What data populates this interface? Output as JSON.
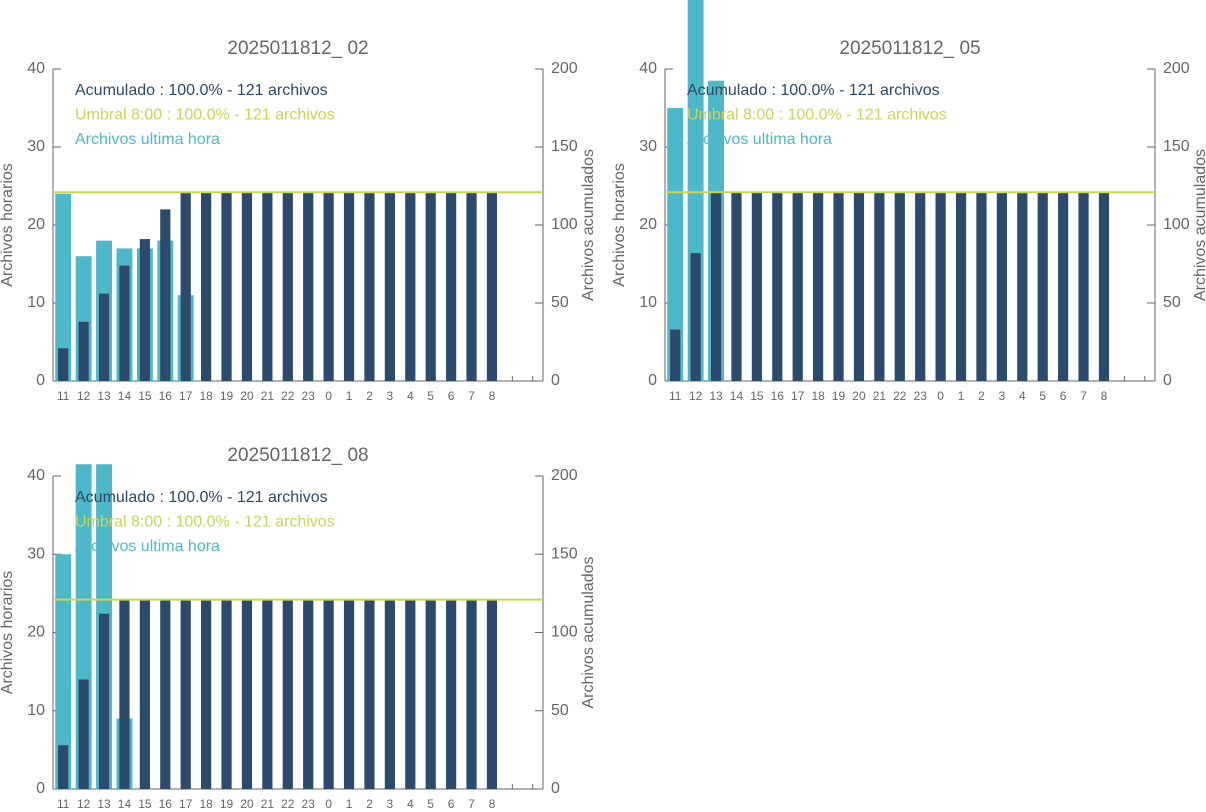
{
  "chart_data": [
    {
      "type": "bar",
      "title": "2025011812_ 02",
      "categories": [
        "11",
        "12",
        "13",
        "14",
        "15",
        "16",
        "17",
        "18",
        "19",
        "20",
        "21",
        "22",
        "23",
        "0",
        "1",
        "2",
        "3",
        "4",
        "5",
        "6",
        "7",
        "8",
        null,
        null
      ],
      "series": [
        {
          "name": "Archivos ultima hora",
          "color": "#4fb8c8",
          "values": [
            24,
            16,
            18,
            17,
            17,
            18,
            11,
            0,
            0,
            0,
            0,
            0,
            0,
            0,
            0,
            0,
            0,
            0,
            0,
            0,
            0,
            0,
            null,
            null
          ]
        },
        {
          "name": "Acumulado : 100.0% - 121 archivos",
          "color": "#2c4a6b",
          "axis": "y2",
          "values": [
            21,
            38,
            56,
            74,
            91,
            110,
            121,
            121,
            121,
            121,
            121,
            121,
            121,
            121,
            121,
            121,
            121,
            121,
            121,
            121,
            121,
            121,
            null,
            null
          ]
        }
      ],
      "threshold": {
        "name": "Umbral 8:00 : 100.0% - 121 archivos",
        "color": "#c8d45a",
        "axis": "y2",
        "value": 121
      },
      "ylabel": "Archivos horarios",
      "y2label": "Archivos acumulados",
      "ylim": [
        0,
        40
      ],
      "yticks": [
        0,
        10,
        20,
        30,
        40
      ],
      "y2lim": [
        0,
        200
      ],
      "y2ticks": [
        0,
        50,
        100,
        150,
        200
      ]
    },
    {
      "type": "bar",
      "title": "2025011812_ 05",
      "categories": [
        "11",
        "12",
        "13",
        "14",
        "15",
        "16",
        "17",
        "18",
        "19",
        "20",
        "21",
        "22",
        "23",
        "0",
        "1",
        "2",
        "3",
        "4",
        "5",
        "6",
        "7",
        "8",
        null,
        null
      ],
      "series": [
        {
          "name": "Archivos ultima hora",
          "color": "#4fb8c8",
          "values": [
            35,
            49,
            38.5,
            0,
            0,
            0,
            0,
            0,
            0,
            0,
            0,
            0,
            0,
            0,
            0,
            0,
            0,
            0,
            0,
            0,
            0,
            0,
            null,
            null
          ]
        },
        {
          "name": "Acumulado : 100.0% - 121 archivos",
          "color": "#2c4a6b",
          "axis": "y2",
          "values": [
            33,
            82,
            121,
            121,
            121,
            121,
            121,
            121,
            121,
            121,
            121,
            121,
            121,
            121,
            121,
            121,
            121,
            121,
            121,
            121,
            121,
            121,
            null,
            null
          ]
        }
      ],
      "threshold": {
        "name": "Umbral 8:00 : 100.0% - 121 archivos",
        "color": "#c8d45a",
        "axis": "y2",
        "value": 121
      },
      "ylabel": "Archivos horarios",
      "y2label": "Archivos acumulados",
      "ylim": [
        0,
        40
      ],
      "yticks": [
        0,
        10,
        20,
        30,
        40
      ],
      "y2lim": [
        0,
        200
      ],
      "y2ticks": [
        0,
        50,
        100,
        150,
        200
      ]
    },
    {
      "type": "bar",
      "title": "2025011812_ 08",
      "categories": [
        "11",
        "12",
        "13",
        "14",
        "15",
        "16",
        "17",
        "18",
        "19",
        "20",
        "21",
        "22",
        "23",
        "0",
        "1",
        "2",
        "3",
        "4",
        "5",
        "6",
        "7",
        "8",
        null,
        null
      ],
      "series": [
        {
          "name": "Archivos ultima hora",
          "color": "#4fb8c8",
          "values": [
            30,
            41.5,
            41.5,
            9,
            0,
            0,
            0,
            0,
            0,
            0,
            0,
            0,
            0,
            0,
            0,
            0,
            0,
            0,
            0,
            0,
            0,
            0,
            null,
            null
          ]
        },
        {
          "name": "Acumulado : 100.0% - 121 archivos",
          "color": "#2c4a6b",
          "axis": "y2",
          "values": [
            28,
            70,
            112,
            121,
            121,
            121,
            121,
            121,
            121,
            121,
            121,
            121,
            121,
            121,
            121,
            121,
            121,
            121,
            121,
            121,
            121,
            121,
            null,
            null
          ]
        }
      ],
      "threshold": {
        "name": "Umbral 8:00 : 100.0% - 121 archivos",
        "color": "#c8d45a",
        "axis": "y2",
        "value": 121
      },
      "ylabel": "Archivos horarios",
      "y2label": "Archivos acumulados",
      "ylim": [
        0,
        40
      ],
      "yticks": [
        0,
        10,
        20,
        30,
        40
      ],
      "y2lim": [
        0,
        200
      ],
      "y2ticks": [
        0,
        50,
        100,
        150,
        200
      ]
    }
  ]
}
